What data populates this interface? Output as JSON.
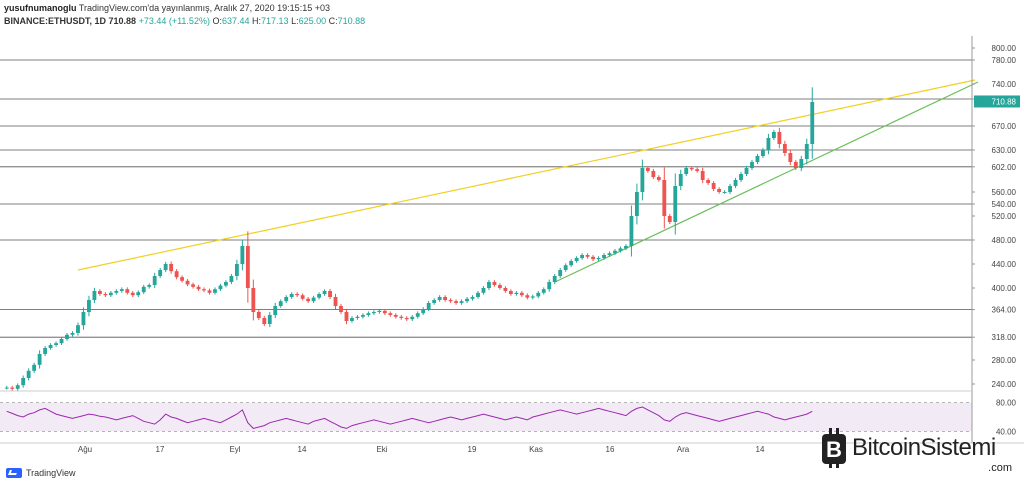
{
  "header": {
    "line1_user": "yusufnumanoglu",
    "line1_rest": "TradingView.com'da yayınlanmış, Aralık 27, 2020 19:15:15 +03",
    "line2_symbol": "BINANCE:ETHUSDT, 1D 710.88",
    "line2_change": "+73.44 (+11.52%)",
    "o_label": "O:",
    "o_val": "637.44",
    "h_label": "H:",
    "h_val": "717.13",
    "l_label": "L:",
    "l_val": "625.00",
    "c_label": "C:",
    "c_val": "710.88"
  },
  "footer": {
    "logo_text": "TradingView"
  },
  "brand": {
    "name": "BitcoinSistemi",
    "sub": ".com"
  },
  "colors": {
    "up": "#26a69a",
    "down": "#ef5350",
    "trend_upper": "#f0d020",
    "trend_lower": "#6cbf5a",
    "rsi": "#9c27b0",
    "last_price": "#26a69a"
  },
  "chart_data": {
    "type": "candlestick",
    "y_ticks": [
      800,
      780,
      740,
      715,
      670,
      630,
      602,
      560,
      540,
      520,
      480,
      440,
      400,
      364,
      318,
      280,
      240
    ],
    "last_price": 710.88,
    "ylim": [
      230,
      820
    ],
    "x_ticks": [
      "Ağu",
      "17",
      "Eyl",
      "14",
      "Eki",
      "19",
      "Kas",
      "16",
      "Ara",
      "14"
    ],
    "horizontal_levels": [
      780,
      715,
      670,
      630,
      602,
      540,
      480,
      364,
      318
    ],
    "closes": [
      234,
      232,
      238,
      250,
      262,
      272,
      290,
      300,
      305,
      308,
      315,
      322,
      325,
      338,
      360,
      380,
      395,
      390,
      388,
      392,
      395,
      398,
      392,
      388,
      393,
      402,
      405,
      420,
      430,
      440,
      428,
      418,
      412,
      406,
      402,
      398,
      396,
      392,
      398,
      404,
      410,
      420,
      440,
      470,
      400,
      360,
      350,
      340,
      355,
      370,
      378,
      385,
      390,
      388,
      382,
      378,
      384,
      390,
      395,
      385,
      370,
      360,
      345,
      350,
      352,
      355,
      358,
      360,
      362,
      358,
      355,
      352,
      350,
      348,
      352,
      358,
      365,
      375,
      380,
      385,
      380,
      378,
      375,
      378,
      382,
      385,
      392,
      400,
      410,
      405,
      400,
      395,
      390,
      392,
      388,
      384,
      386,
      392,
      398,
      410,
      420,
      430,
      438,
      445,
      450,
      455,
      452,
      448,
      450,
      455,
      458,
      462,
      466,
      470,
      520,
      560,
      600,
      595,
      585,
      580,
      520,
      510,
      570,
      590,
      600,
      598,
      595,
      580,
      575,
      565,
      560,
      560,
      570,
      580,
      590,
      600,
      610,
      620,
      630,
      650,
      660,
      640,
      625,
      610,
      600,
      615,
      640,
      710
    ],
    "rsi_levels": [
      80,
      40
    ],
    "rsi_values": [
      68,
      65,
      62,
      60,
      64,
      66,
      70,
      72,
      68,
      64,
      62,
      60,
      58,
      60,
      62,
      64,
      63,
      61,
      60,
      58,
      56,
      58,
      60,
      62,
      58,
      54,
      52,
      50,
      56,
      64,
      60,
      58,
      55,
      52,
      54,
      56,
      58,
      56,
      54,
      52,
      56,
      60,
      64,
      70,
      52,
      44,
      46,
      48,
      52,
      54,
      56,
      58,
      56,
      54,
      52,
      50,
      54,
      56,
      58,
      54,
      50,
      46,
      44,
      48,
      50,
      52,
      54,
      56,
      54,
      52,
      50,
      52,
      54,
      56,
      58,
      56,
      54,
      52,
      54,
      56,
      58,
      60,
      58,
      56,
      58,
      60,
      62,
      64,
      62,
      60,
      58,
      56,
      58,
      60,
      58,
      56,
      60,
      62,
      64,
      66,
      68,
      70,
      68,
      66,
      64,
      66,
      68,
      70,
      72,
      70,
      68,
      66,
      64,
      62,
      68,
      72,
      74,
      70,
      66,
      62,
      56,
      54,
      60,
      64,
      66,
      64,
      62,
      60,
      58,
      56,
      54,
      56,
      58,
      60,
      62,
      64,
      66,
      68,
      66,
      64,
      60,
      58,
      56,
      58,
      60,
      62,
      64,
      68
    ]
  }
}
